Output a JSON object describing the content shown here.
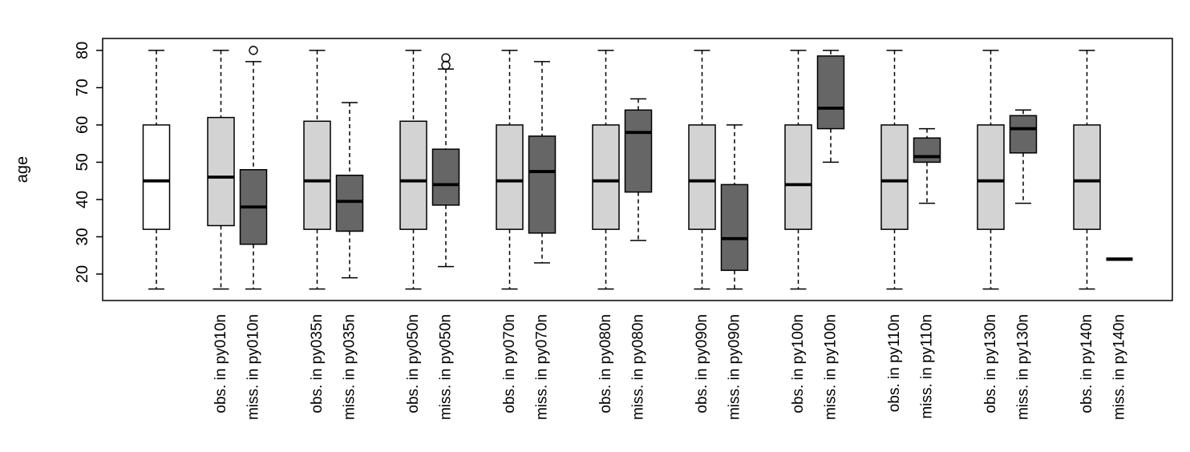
{
  "chart_data": {
    "type": "boxplot",
    "title": "",
    "xlabel": "",
    "ylabel": "age",
    "ylim": [
      12.9,
      83.2
    ],
    "yticks": [
      20,
      30,
      40,
      50,
      60,
      70,
      80
    ],
    "grid": false,
    "legend": "none",
    "colors": {
      "overall": "#ffffff",
      "observed": "#d3d3d3",
      "missing": "#666666",
      "stroke": "#000000"
    },
    "groups": [
      {
        "label": "",
        "fill": "overall",
        "whisker_low": 16,
        "q1": 32,
        "median": 45,
        "q3": 60,
        "whisker_high": 80,
        "outliers": []
      },
      {
        "label": "obs. in py010n",
        "fill": "observed",
        "whisker_low": 16,
        "q1": 33,
        "median": 46,
        "q3": 62,
        "whisker_high": 80,
        "outliers": []
      },
      {
        "label": "miss. in py010n",
        "fill": "missing",
        "whisker_low": 16,
        "q1": 28,
        "median": 38,
        "q3": 48,
        "whisker_high": 77,
        "outliers": [
          80
        ]
      },
      {
        "label": "obs. in py035n",
        "fill": "observed",
        "whisker_low": 16,
        "q1": 32,
        "median": 45,
        "q3": 61,
        "whisker_high": 80,
        "outliers": []
      },
      {
        "label": "miss. in py035n",
        "fill": "missing",
        "whisker_low": 19,
        "q1": 31.5,
        "median": 39.5,
        "q3": 46.5,
        "whisker_high": 66,
        "outliers": []
      },
      {
        "label": "obs. in py050n",
        "fill": "observed",
        "whisker_low": 16,
        "q1": 32,
        "median": 45,
        "q3": 61,
        "whisker_high": 80,
        "outliers": []
      },
      {
        "label": "miss. in py050n",
        "fill": "missing",
        "whisker_low": 22,
        "q1": 38.5,
        "median": 44,
        "q3": 53.5,
        "whisker_high": 75,
        "outliers": [
          76,
          78
        ]
      },
      {
        "label": "obs. in py070n",
        "fill": "observed",
        "whisker_low": 16,
        "q1": 32,
        "median": 45,
        "q3": 60,
        "whisker_high": 80,
        "outliers": []
      },
      {
        "label": "miss. in py070n",
        "fill": "missing",
        "whisker_low": 23,
        "q1": 31,
        "median": 47.5,
        "q3": 57,
        "whisker_high": 77,
        "outliers": []
      },
      {
        "label": "obs. in py080n",
        "fill": "observed",
        "whisker_low": 16,
        "q1": 32,
        "median": 45,
        "q3": 60,
        "whisker_high": 80,
        "outliers": []
      },
      {
        "label": "miss. in py080n",
        "fill": "missing",
        "whisker_low": 29,
        "q1": 42,
        "median": 58,
        "q3": 64,
        "whisker_high": 67,
        "outliers": []
      },
      {
        "label": "obs. in py090n",
        "fill": "observed",
        "whisker_low": 16,
        "q1": 32,
        "median": 45,
        "q3": 60,
        "whisker_high": 80,
        "outliers": []
      },
      {
        "label": "miss. in py090n",
        "fill": "missing",
        "whisker_low": 16,
        "q1": 21,
        "median": 29.5,
        "q3": 44,
        "whisker_high": 60,
        "outliers": []
      },
      {
        "label": "obs. in py100n",
        "fill": "observed",
        "whisker_low": 16,
        "q1": 32,
        "median": 44,
        "q3": 60,
        "whisker_high": 80,
        "outliers": []
      },
      {
        "label": "miss. in py100n",
        "fill": "missing",
        "whisker_low": 50,
        "q1": 59,
        "median": 64.5,
        "q3": 78.5,
        "whisker_high": 80,
        "outliers": []
      },
      {
        "label": "obs. in py110n",
        "fill": "observed",
        "whisker_low": 16,
        "q1": 32,
        "median": 45,
        "q3": 60,
        "whisker_high": 80,
        "outliers": []
      },
      {
        "label": "miss. in py110n",
        "fill": "missing",
        "whisker_low": 39,
        "q1": 50,
        "median": 51.5,
        "q3": 56.5,
        "whisker_high": 59,
        "outliers": []
      },
      {
        "label": "obs. in py130n",
        "fill": "observed",
        "whisker_low": 16,
        "q1": 32,
        "median": 45,
        "q3": 60,
        "whisker_high": 80,
        "outliers": []
      },
      {
        "label": "miss. in py130n",
        "fill": "missing",
        "whisker_low": 39,
        "q1": 52.5,
        "median": 59,
        "q3": 62.5,
        "whisker_high": 64,
        "outliers": []
      },
      {
        "label": "obs. in py140n",
        "fill": "observed",
        "whisker_low": 16,
        "q1": 32,
        "median": 45,
        "q3": 60,
        "whisker_high": 80,
        "outliers": []
      },
      {
        "label": "miss. in py140n",
        "fill": "missing",
        "whisker_low": 24,
        "q1": 24,
        "median": 24,
        "q3": 24,
        "whisker_high": 24,
        "outliers": [],
        "degenerate": true
      }
    ]
  }
}
